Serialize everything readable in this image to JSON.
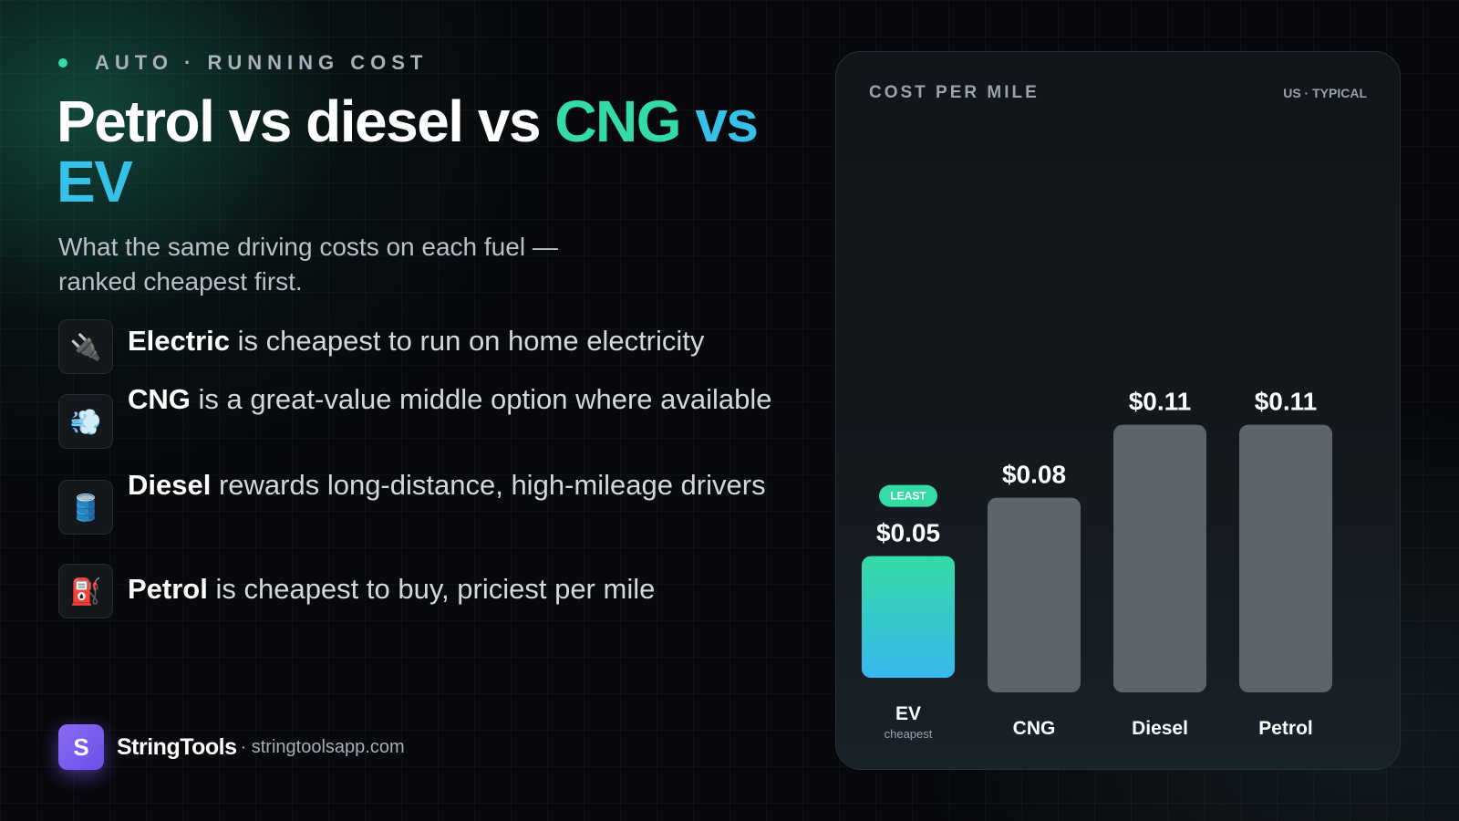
{
  "kicker": "AUTO · RUNNING COST",
  "headline": {
    "part1": "Petrol vs diesel vs ",
    "part2": "CNG",
    "part3": " vs ",
    "part4": "EV",
    "colors": {
      "cng": "#34dba5",
      "ev": "#36c1e8"
    }
  },
  "subtitle": "What the same driving costs on each fuel — ranked cheapest first.",
  "bullets": [
    {
      "icon": "plug-icon",
      "glyph": "🔌",
      "strong": "Electric",
      "rest": " is cheapest to run on home electricity"
    },
    {
      "icon": "gas-cloud-icon",
      "glyph": "💨",
      "strong": "CNG",
      "rest": " is a great-value middle option where available"
    },
    {
      "icon": "oil-drum-icon",
      "glyph": "🛢️",
      "strong": "Diesel",
      "rest": " rewards long-distance, high-mileage drivers"
    },
    {
      "icon": "fuel-pump-icon",
      "glyph": "⛽",
      "strong": "Petrol",
      "rest": " is cheapest to buy, priciest per mile"
    }
  ],
  "brand": {
    "logo_letter": "S",
    "name": "StringTools",
    "url": "· stringtoolsapp.com"
  },
  "panel": {
    "title": "COST PER MILE",
    "region": "US · TYPICAL"
  },
  "chart_data": {
    "type": "bar",
    "title": "COST PER MILE",
    "subtitle": "US · TYPICAL",
    "categories": [
      "EV",
      "CNG",
      "Diesel",
      "Petrol"
    ],
    "values": [
      0.05,
      0.08,
      0.11,
      0.11
    ],
    "value_labels": [
      "$0.05",
      "$0.08",
      "$0.11",
      "$0.11"
    ],
    "category_sublabels": [
      "cheapest",
      "",
      "",
      ""
    ],
    "highlight": {
      "index": 0,
      "badge": "LEAST"
    },
    "ylim": [
      0,
      0.12
    ],
    "grid": false,
    "colors": {
      "highlight_top": "#34dba5",
      "highlight_bottom": "#36b8ee",
      "bar": "#5d646b",
      "badge": "#34dba5"
    }
  }
}
